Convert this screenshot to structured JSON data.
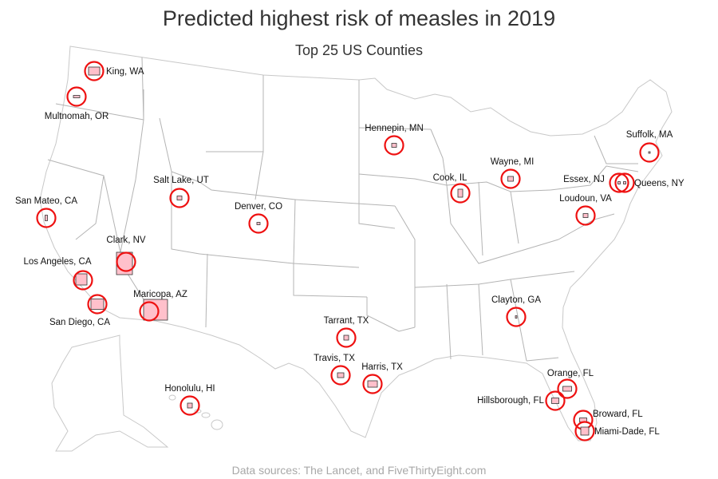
{
  "title": "Predicted highest risk of measles in 2019",
  "subtitle": "Top 25 US Counties",
  "footer": "Data sources: The Lancet, and FiveThirtyEight.com",
  "colors": {
    "marker": "#ee1111",
    "county_fill": "#ffc0cb",
    "county_outline": "#333333",
    "map_lines": "#d4d4d4",
    "state_lines": "#b0b0b0",
    "title": "#333333",
    "footer": "#a8a8a8"
  },
  "chart_data": {
    "type": "map",
    "title": "Predicted highest risk of measles in 2019",
    "subtitle": "Top 25 US Counties",
    "region": "United States (counties)",
    "counties": [
      {
        "name": "King, WA",
        "lon": -121.8,
        "lat": 47.5
      },
      {
        "name": "Multnomah, OR",
        "lon": -122.4,
        "lat": 45.5
      },
      {
        "name": "San Mateo, CA",
        "lon": -122.3,
        "lat": 37.4
      },
      {
        "name": "Los Angeles, CA",
        "lon": -118.2,
        "lat": 34.3
      },
      {
        "name": "San Diego, CA",
        "lon": -116.8,
        "lat": 33.0
      },
      {
        "name": "Clark, NV",
        "lon": -115.0,
        "lat": 36.2
      },
      {
        "name": "Maricopa, AZ",
        "lon": -112.5,
        "lat": 33.3
      },
      {
        "name": "Salt Lake, UT",
        "lon": -111.9,
        "lat": 40.7
      },
      {
        "name": "Denver, CO",
        "lon": -104.9,
        "lat": 39.7
      },
      {
        "name": "Hennepin, MN",
        "lon": -93.5,
        "lat": 45.0
      },
      {
        "name": "Cook, IL",
        "lon": -87.8,
        "lat": 41.8
      },
      {
        "name": "Wayne, MI",
        "lon": -83.2,
        "lat": 42.3
      },
      {
        "name": "Suffolk, MA",
        "lon": -71.1,
        "lat": 42.3
      },
      {
        "name": "Essex, NJ",
        "lon": -74.2,
        "lat": 40.8
      },
      {
        "name": "Queens, NY",
        "lon": -73.8,
        "lat": 40.7
      },
      {
        "name": "Loudoun, VA",
        "lon": -77.6,
        "lat": 39.1
      },
      {
        "name": "Tarrant, TX",
        "lon": -97.3,
        "lat": 32.8
      },
      {
        "name": "Travis, TX",
        "lon": -97.8,
        "lat": 30.3
      },
      {
        "name": "Harris, TX",
        "lon": -95.4,
        "lat": 29.9
      },
      {
        "name": "Clayton, GA",
        "lon": -84.4,
        "lat": 33.5
      },
      {
        "name": "Orange, FL",
        "lon": -81.3,
        "lat": 28.5
      },
      {
        "name": "Hillsborough, FL",
        "lon": -82.3,
        "lat": 27.9
      },
      {
        "name": "Broward, FL",
        "lon": -80.4,
        "lat": 26.2
      },
      {
        "name": "Miami-Dade, FL",
        "lon": -80.5,
        "lat": 25.6
      },
      {
        "name": "Honolulu, HI",
        "lon": -158.0,
        "lat": 21.4
      }
    ]
  }
}
